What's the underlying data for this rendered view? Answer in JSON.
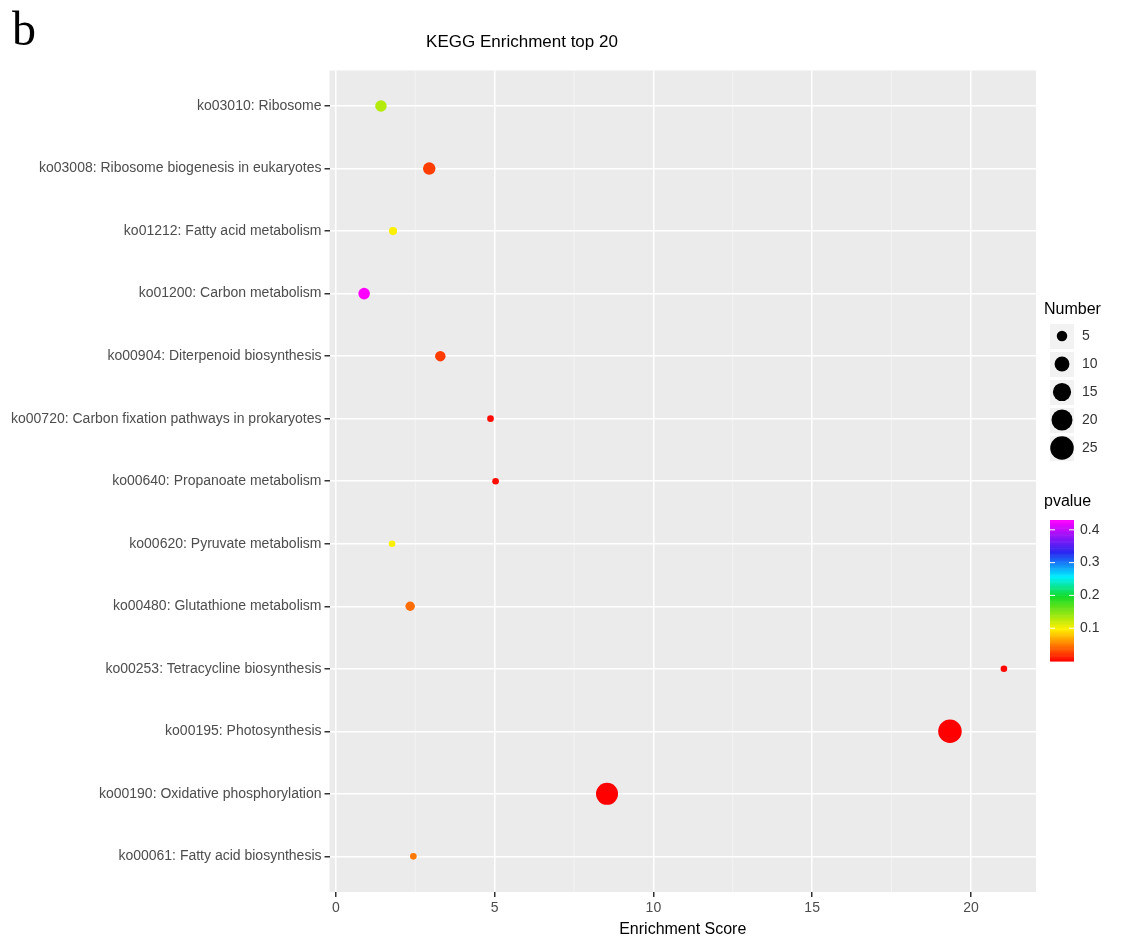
{
  "chart_data": {
    "type": "bubble",
    "orientation": "horizontal",
    "title": "KEGG Enrichment top 20",
    "xlabel": "Enrichment Score",
    "categories": [
      "ko03010: Ribosome",
      "ko03008: Ribosome biogenesis in eukaryotes",
      "ko01212: Fatty acid metabolism",
      "ko01200: Carbon metabolism",
      "ko00904: Diterpenoid biosynthesis",
      "ko00720: Carbon fixation pathways in prokaryotes",
      "ko00640: Propanoate metabolism",
      "ko00620: Pyruvate metabolism",
      "ko00480: Glutathione metabolism",
      "ko00253: Tetracycline biosynthesis",
      "ko00195: Photosynthesis",
      "ko00190: Oxidative phosphorylation",
      "ko00061: Fatty acid biosynthesis"
    ],
    "values": [
      1.42,
      2.94,
      1.8,
      0.89,
      3.29,
      4.87,
      5.03,
      1.77,
      2.34,
      21.04,
      19.34,
      8.54,
      2.44
    ],
    "sizes": [
      6,
      7,
      3,
      6,
      5,
      2,
      2,
      2,
      4,
      2,
      25,
      22,
      2
    ],
    "cvalues": [
      0.13,
      0.025,
      0.1,
      0.43,
      0.025,
      0.005,
      0.005,
      0.1,
      0.045,
      0.003,
      0,
      0,
      0.05
    ],
    "size_legend": [
      5,
      10,
      15,
      20,
      25
    ],
    "legend_title": "Number",
    "clabel": "pvalue",
    "clim": [
      0,
      0.43
    ],
    "cticks": [
      0.1,
      0.2,
      0.3,
      0.4
    ],
    "xlim": [
      -0.2,
      22.05
    ],
    "xticks": [
      0,
      5,
      10,
      15,
      20
    ],
    "grid": true,
    "annotations": [
      "b"
    ]
  }
}
